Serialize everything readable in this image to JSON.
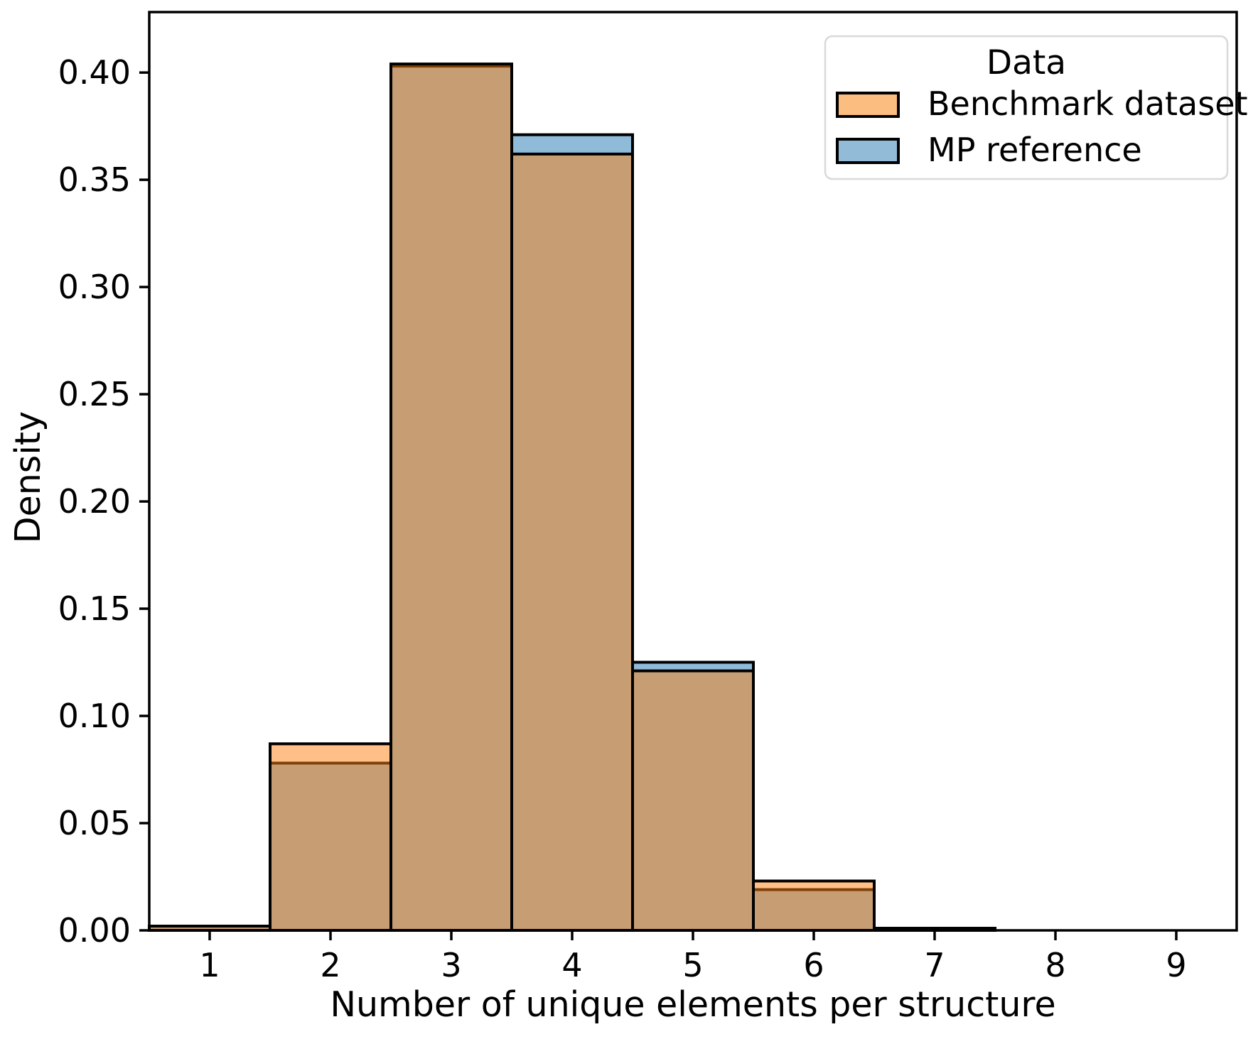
{
  "figure": {
    "background_color": "#ffffff",
    "axes_edge_color": "#000000"
  },
  "chart_data": {
    "type": "histogram",
    "title": "",
    "xlabel": "Number of unique elements per structure",
    "ylabel": "Density",
    "xlim": [
      0.5,
      9.5
    ],
    "ylim": [
      0,
      0.4282
    ],
    "xtick_values": [
      1,
      2,
      3,
      4,
      5,
      6,
      7,
      8,
      9
    ],
    "xtick_labels": [
      "1",
      "2",
      "3",
      "4",
      "5",
      "6",
      "7",
      "8",
      "9"
    ],
    "ytick_values": [
      0.0,
      0.05,
      0.1,
      0.15,
      0.2,
      0.25,
      0.3,
      0.35,
      0.4
    ],
    "ytick_labels": [
      "0.00",
      "0.05",
      "0.10",
      "0.15",
      "0.20",
      "0.25",
      "0.30",
      "0.35",
      "0.40"
    ],
    "grid": false,
    "bin_width": 1,
    "bin_centers": [
      1,
      2,
      3,
      4,
      5,
      6,
      7,
      8,
      9
    ],
    "series": [
      {
        "name": "Benchmark dataset",
        "base_color": "#ff7f0e",
        "fill_alpha": 0.5,
        "swatch_color": "#fcbd80",
        "edge_color": "#000000",
        "densities": [
          0.002,
          0.087,
          0.404,
          0.362,
          0.121,
          0.023,
          0.001,
          0,
          0
        ]
      },
      {
        "name": "MP reference",
        "base_color": "#1f77b4",
        "fill_alpha": 0.5,
        "swatch_color": "#92bbd8",
        "edge_color": "#000000",
        "densities": [
          0.002,
          0.078,
          0.403,
          0.371,
          0.125,
          0.019,
          0.001,
          0,
          0
        ]
      }
    ],
    "draw_order": [
      1,
      0
    ],
    "legend": {
      "title": "Data",
      "position": "upper right"
    }
  }
}
